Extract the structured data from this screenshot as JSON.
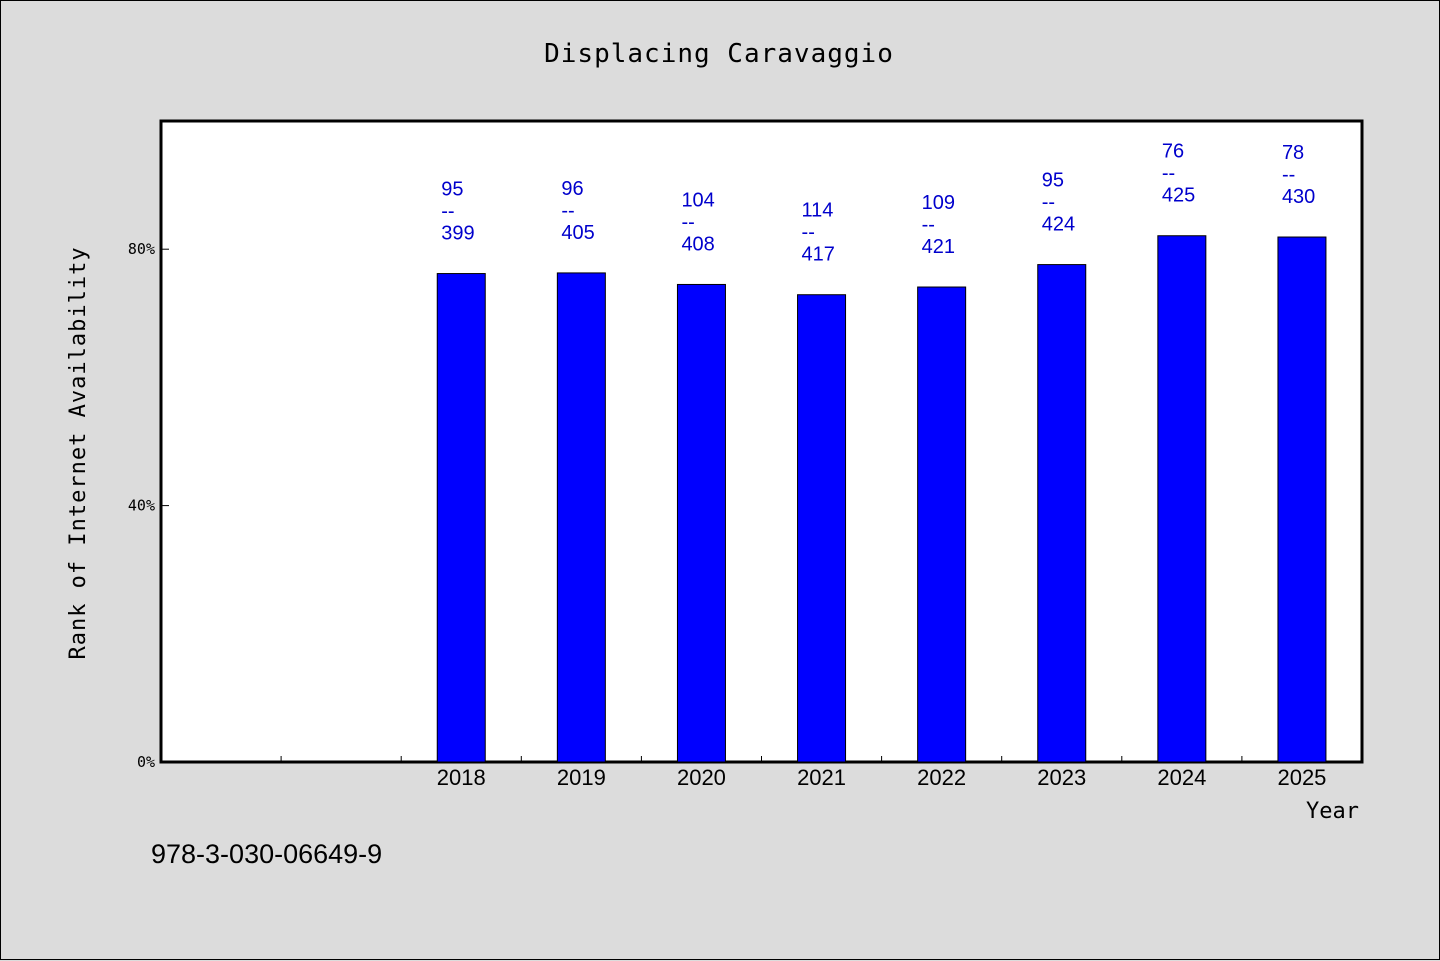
{
  "chart_data": {
    "type": "bar",
    "title": "Displacing Caravaggio",
    "xlabel": "Year",
    "ylabel": "Rank of Internet Availability",
    "y_ticks": [
      "0%",
      "40%",
      "80%"
    ],
    "y_tick_values": [
      0,
      40,
      80
    ],
    "ylim": [
      0,
      100
    ],
    "x_slots": 10,
    "first_bar_slot": 2,
    "categories": [
      "2018",
      "2019",
      "2020",
      "2021",
      "2022",
      "2023",
      "2024",
      "2025"
    ],
    "values": [
      76.2,
      76.3,
      74.5,
      72.9,
      74.1,
      77.6,
      82.1,
      81.9
    ],
    "labels": [
      [
        "95",
        "--",
        "399"
      ],
      [
        "96",
        "--",
        "405"
      ],
      [
        "104",
        "--",
        "408"
      ],
      [
        "114",
        "--",
        "417"
      ],
      [
        "109",
        "--",
        "421"
      ],
      [
        "95",
        "--",
        "424"
      ],
      [
        "76",
        "--",
        "425"
      ],
      [
        "78",
        "--",
        "430"
      ]
    ],
    "bar_color": "#0000ff",
    "label_color": "#0000cc",
    "grid": false
  },
  "footer": {
    "isbn": "978-3-030-06649-9"
  }
}
